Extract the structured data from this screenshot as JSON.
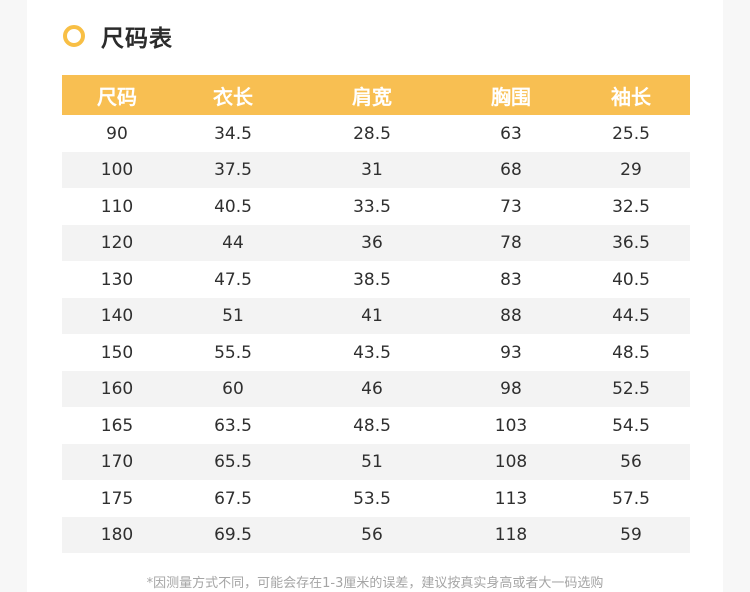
{
  "title": "尺码表",
  "accent_color": "#f8bf52",
  "table": {
    "headers": [
      "尺码",
      "衣长",
      "肩宽",
      "胸围",
      "袖长"
    ],
    "rows": [
      [
        "90",
        "34.5",
        "28.5",
        "63",
        "25.5"
      ],
      [
        "100",
        "37.5",
        "31",
        "68",
        "29"
      ],
      [
        "110",
        "40.5",
        "33.5",
        "73",
        "32.5"
      ],
      [
        "120",
        "44",
        "36",
        "78",
        "36.5"
      ],
      [
        "130",
        "47.5",
        "38.5",
        "83",
        "40.5"
      ],
      [
        "140",
        "51",
        "41",
        "88",
        "44.5"
      ],
      [
        "150",
        "55.5",
        "43.5",
        "93",
        "48.5"
      ],
      [
        "160",
        "60",
        "46",
        "98",
        "52.5"
      ],
      [
        "165",
        "63.5",
        "48.5",
        "103",
        "54.5"
      ],
      [
        "170",
        "65.5",
        "51",
        "108",
        "56"
      ],
      [
        "175",
        "67.5",
        "53.5",
        "113",
        "57.5"
      ],
      [
        "180",
        "69.5",
        "56",
        "118",
        "59"
      ]
    ]
  },
  "note": "*因测量方式不同，可能会存在1-3厘米的误差，建议按真实身高或者大一码选购"
}
